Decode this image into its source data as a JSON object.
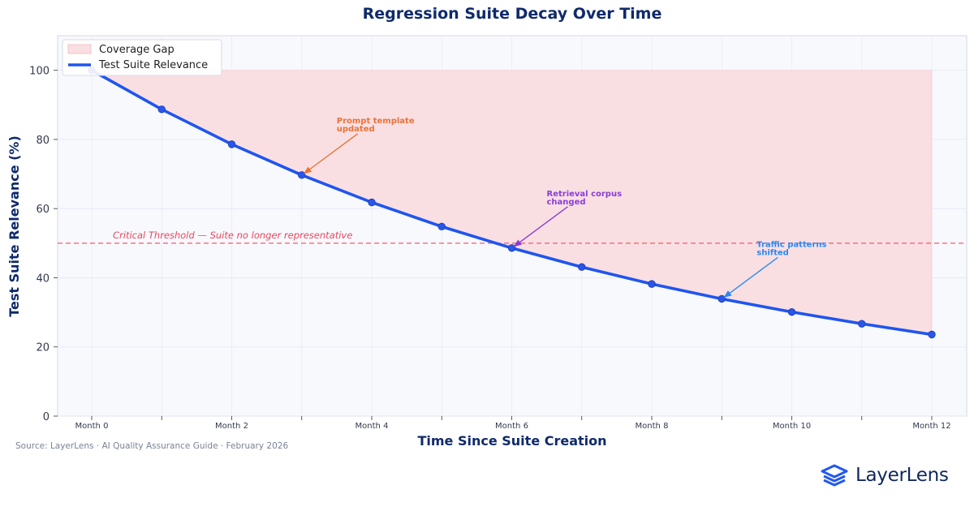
{
  "chart_data": {
    "type": "line",
    "title": "Regression Suite Decay Over Time",
    "xlabel": "Time Since Suite Creation",
    "ylabel": "Test Suite Relevance (%)",
    "categories": [
      "Month 0",
      "Month 1",
      "Month 2",
      "Month 3",
      "Month 4",
      "Month 5",
      "Month 6",
      "Month 7",
      "Month 8",
      "Month 9",
      "Month 10",
      "Month 11",
      "Month 12"
    ],
    "tick_labels": [
      "Month 0",
      "",
      "Month 2",
      "",
      "Month 4",
      "",
      "Month 6",
      "",
      "Month 8",
      "",
      "Month 10",
      "",
      "Month 12"
    ],
    "series": [
      {
        "name": "Test Suite Relevance",
        "values": [
          100,
          88.7,
          78.6,
          69.7,
          61.8,
          54.8,
          48.6,
          43.1,
          38.2,
          33.9,
          30.1,
          26.7,
          23.6
        ],
        "color": "#1f55f0"
      }
    ],
    "coverage_gap": {
      "name": "Coverage Gap",
      "baseline": 100,
      "color": "#f9dfe2"
    },
    "ylim": [
      0,
      110
    ],
    "yticks": [
      0,
      20,
      40,
      60,
      80,
      100
    ],
    "grid": true,
    "legend_position": "top-left",
    "threshold": {
      "value": 50,
      "label": "Critical Threshold — Suite no longer representative",
      "color": "#e8475e"
    },
    "annotations": [
      {
        "lines": [
          "Prompt template",
          "updated"
        ],
        "month": 3,
        "value": 69.7,
        "color": "#e8733a"
      },
      {
        "lines": [
          "Retrieval corpus",
          "changed"
        ],
        "month": 6,
        "value": 48.6,
        "color": "#8a3ed6"
      },
      {
        "lines": [
          "Traffic patterns",
          "shifted"
        ],
        "month": 9,
        "value": 33.9,
        "color": "#2b8af2"
      }
    ]
  },
  "footer": {
    "source": "Source: LayerLens  ·  AI Quality Assurance Guide  ·  February 2026",
    "brand": "LayerLens"
  }
}
